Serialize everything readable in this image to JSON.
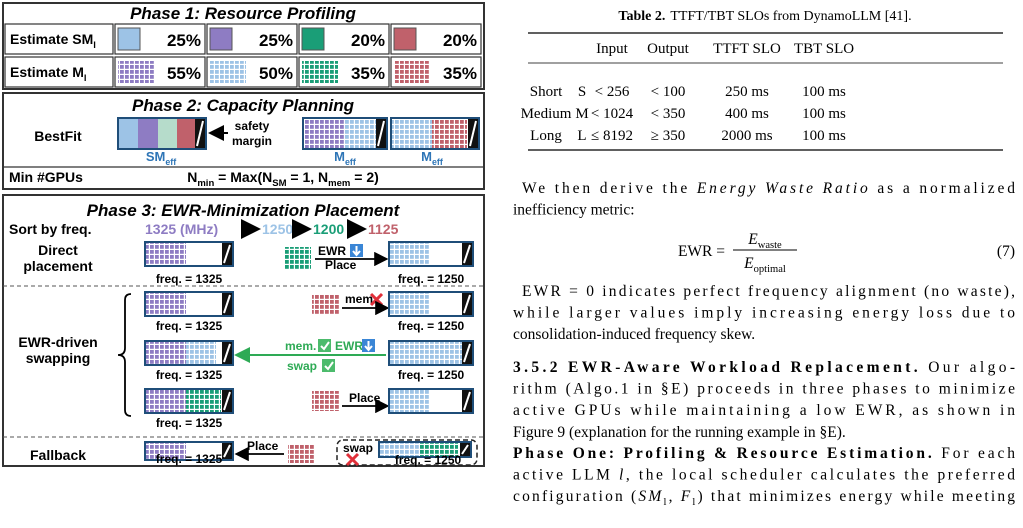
{
  "figure": {
    "phase1": {
      "title": "Phase 1: Resource Profiling",
      "sm_label": [
        {
          "text": "Estimate SM"
        },
        {
          "text": "l",
          "style": "sub"
        }
      ],
      "mem_label": [
        {
          "text": "Estimate M"
        },
        {
          "text": "l",
          "style": "sub"
        }
      ],
      "sm_values": [
        "25%",
        "25%",
        "20%",
        "20%"
      ],
      "mem_values": [
        "55%",
        "50%",
        "35%",
        "35%"
      ]
    },
    "phase2": {
      "title": "Phase 2: Capacity Planning",
      "bestfit": "BestFit",
      "safety_margin": [
        "safety",
        "margin"
      ],
      "bar_labels": [
        [
          {
            "text": "SM"
          },
          {
            "text": "eff",
            "style": "sub"
          }
        ],
        [
          {
            "text": "M"
          },
          {
            "text": "eff",
            "style": "sub"
          }
        ],
        [
          {
            "text": "M"
          },
          {
            "text": "eff",
            "style": "sub"
          }
        ]
      ],
      "min_gpus": "Min #GPUs",
      "formula": [
        {
          "text": "N"
        },
        {
          "text": "min",
          "style": "sub"
        },
        {
          "text": " = Max(N"
        },
        {
          "text": "SM",
          "style": "sub"
        },
        {
          "text": " = 1, N"
        },
        {
          "text": "mem",
          "style": "sub"
        },
        {
          "text": " = 2)"
        }
      ]
    },
    "phase3": {
      "title": "Phase 3: EWR-Minimization Placement",
      "sort_label": "Sort by freq.",
      "freqs": [
        "1325 (MHz)",
        "1250",
        "1200",
        "1125"
      ],
      "sections": [
        [
          "Direct",
          "placement"
        ],
        [
          "EWR-driven",
          "swapping"
        ],
        [
          "Fallback"
        ]
      ],
      "freq_labels": [
        "freq. = 1325",
        "freq. = 1250",
        "freq. = 1325",
        "freq. = 1250",
        "freq. = 1325",
        "freq. = 1250",
        "freq. = 1325",
        "freq. = 1325",
        "freq. = 1250"
      ],
      "annotations": [
        "EWR",
        "Place",
        "mem.",
        "mem.",
        "EWR",
        "swap",
        "Place",
        "Place",
        "swap"
      ]
    }
  },
  "table": {
    "caption_label": "Table 2.",
    "caption": "TTFT/TBT SLOs from DynamoLLM [41].",
    "header": [
      "Input",
      "Output",
      "TTFT SLO",
      "TBT SLO"
    ],
    "rows": [
      [
        "Short",
        "S",
        "< 256",
        "< 100",
        "250 ms",
        "100 ms"
      ],
      [
        "Medium",
        "M",
        "< 1024",
        "< 350",
        "400 ms",
        "100 ms"
      ],
      [
        "Long",
        "L",
        "≤ 8192",
        "≥ 350",
        "2000 ms",
        "100 ms"
      ]
    ]
  },
  "paragraphs": [
    {
      "lines": [
        [
          {
            "text": "We then derive the "
          },
          {
            "text": "Energy Waste Ratio",
            "style": "i"
          },
          {
            "text": " as a normalized"
          }
        ],
        [
          {
            "text": "inefficiency metric:"
          }
        ]
      ]
    },
    {
      "lines": [
        [
          {
            "text": "EWR = 0 indicates perfect frequency alignment (no waste),"
          }
        ],
        [
          {
            "text": "while larger values imply increasing energy loss due to"
          }
        ],
        [
          {
            "text": "consolidation-induced frequency skew."
          }
        ]
      ]
    },
    {
      "lines": [
        [
          {
            "text": "3.5.2   EWR-Aware Workload Replacement.",
            "style": "b"
          },
          {
            "text": " Our algo-"
          }
        ],
        [
          {
            "text": "rithm (Algo.1 in §E) proceeds in three phases to minimize"
          }
        ],
        [
          {
            "text": "active GPUs while maintaining a low EWR, as shown in"
          }
        ],
        [
          {
            "text": "Figure 9 (explanation for the running example in §E)."
          }
        ]
      ]
    },
    {
      "lines": [
        [
          {
            "text": "Phase One: Profiling & Resource Estimation.",
            "style": "b"
          },
          {
            "text": " For each"
          }
        ],
        [
          {
            "text": "active LLM "
          },
          {
            "text": "l",
            "style": "i"
          },
          {
            "text": ", the local scheduler calculates the preferred"
          }
        ],
        [
          {
            "text": "configuration ("
          },
          {
            "text": "SM",
            "style": "i"
          },
          {
            "text": "l",
            "style": "sub"
          },
          {
            "text": ", "
          },
          {
            "text": "F",
            "style": "i"
          },
          {
            "text": "l",
            "style": "sub"
          },
          {
            "text": ") that minimizes energy while meeting"
          }
        ]
      ]
    }
  ],
  "equation": {
    "lhs": "EWR =",
    "numerator": [
      {
        "text": "E",
        "style": "i"
      },
      {
        "text": "waste",
        "style": "sub"
      }
    ],
    "denominator": [
      {
        "text": "E",
        "style": "i"
      },
      {
        "text": "optimal",
        "style": "sub"
      }
    ],
    "number": "(7)"
  }
}
